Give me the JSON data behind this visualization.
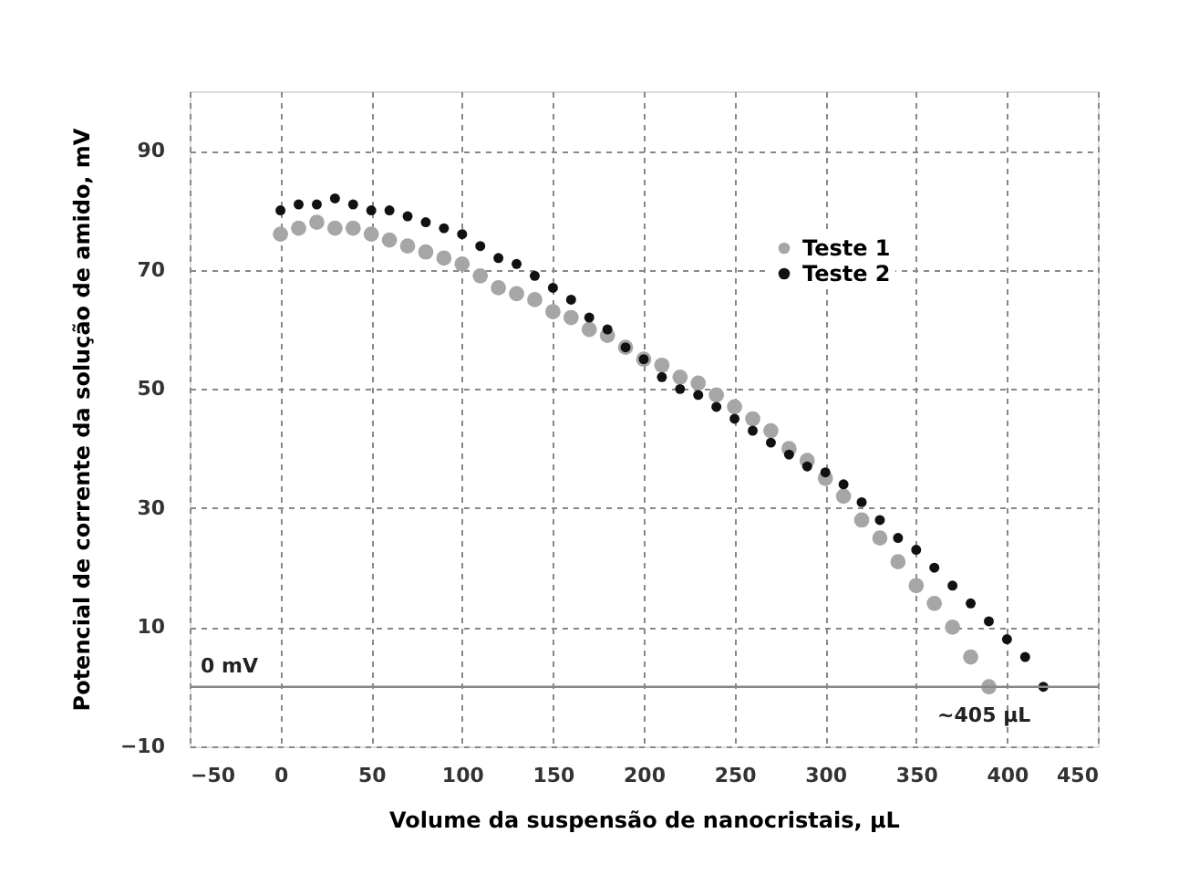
{
  "chart_data": {
    "type": "scatter",
    "xlabel": "Volume da suspensão de nanocristais, µL",
    "ylabel": "Potencial de corrente da solução de amido, mV",
    "xlim": [
      -50,
      450
    ],
    "xticks": [
      -50,
      0,
      50,
      100,
      150,
      200,
      250,
      300,
      350,
      400,
      450
    ],
    "ylim": [
      -10,
      100
    ],
    "yticks": [
      -10,
      10,
      30,
      50,
      70,
      90
    ],
    "grid": true,
    "legend": "top right",
    "marker": "circle",
    "series": [
      {
        "name": "Teste 1",
        "color": "#a6a6a6",
        "x": [
          0,
          10,
          20,
          30,
          40,
          50,
          60,
          70,
          80,
          90,
          100,
          110,
          120,
          130,
          140,
          150,
          160,
          170,
          180,
          190,
          200,
          210,
          220,
          230,
          240,
          250,
          260,
          270,
          280,
          290,
          300,
          310,
          320,
          330,
          340,
          350,
          360,
          370,
          380,
          390
        ],
        "values": [
          76,
          77,
          78,
          77,
          77,
          76,
          75,
          74,
          73,
          72,
          71,
          69,
          67,
          66,
          65,
          63,
          62,
          60,
          59,
          57,
          55,
          54,
          52,
          51,
          49,
          47,
          45,
          43,
          40,
          38,
          35,
          32,
          28,
          25,
          21,
          17,
          14,
          10,
          5,
          0
        ]
      },
      {
        "name": "Teste 2",
        "color": "#111111",
        "x": [
          0,
          10,
          20,
          30,
          40,
          50,
          60,
          70,
          80,
          90,
          100,
          110,
          120,
          130,
          140,
          150,
          160,
          170,
          180,
          190,
          200,
          210,
          220,
          230,
          240,
          250,
          260,
          270,
          280,
          290,
          300,
          310,
          320,
          330,
          340,
          350,
          360,
          370,
          380,
          390,
          400,
          410,
          420
        ],
        "values": [
          80,
          81,
          81,
          82,
          81,
          80,
          80,
          79,
          78,
          77,
          76,
          74,
          72,
          71,
          69,
          67,
          65,
          62,
          60,
          57,
          55,
          52,
          50,
          49,
          47,
          45,
          43,
          41,
          39,
          37,
          36,
          34,
          31,
          28,
          25,
          23,
          20,
          17,
          14,
          11,
          8,
          5,
          0
        ]
      }
    ],
    "ref_lines": [
      {
        "axis": "y",
        "value": 0,
        "label": "0 mV",
        "color": "#888888"
      }
    ],
    "annotations": [
      {
        "text": "~405 µL",
        "x": 405,
        "y": 0
      }
    ]
  }
}
